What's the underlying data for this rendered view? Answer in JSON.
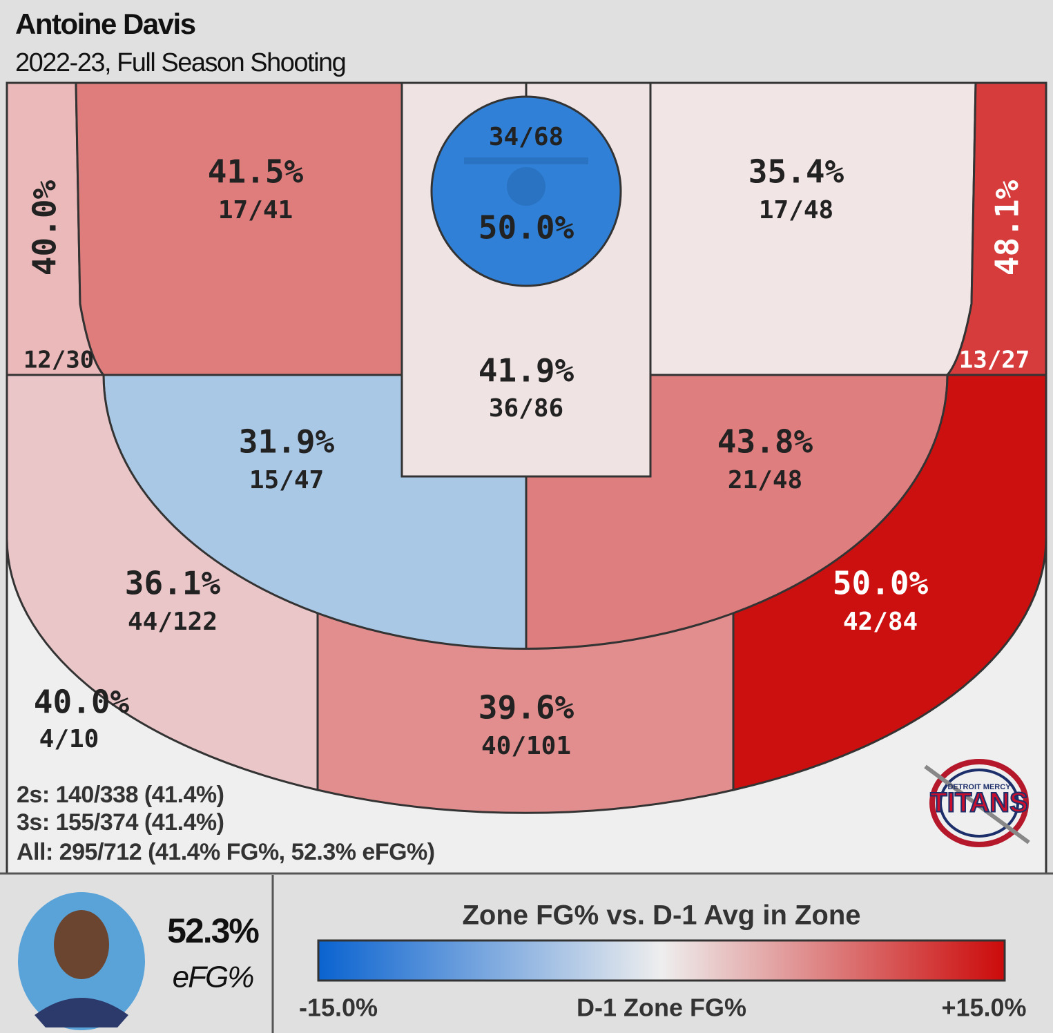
{
  "header": {
    "title": "Antoine Davis",
    "subtitle": "2022-23, Full Season Shooting"
  },
  "zones": [
    {
      "pct": "40.0%",
      "shots": "12/30",
      "color": "#ebb9b9",
      "label_color": "#222222"
    },
    {
      "pct": "41.5%",
      "shots": "17/41",
      "color": "#df7c7c",
      "label_color": "#222222"
    },
    {
      "pct": "50.0%",
      "shots": "34/68",
      "color": "#2f80d6",
      "label_color": "#222222"
    },
    {
      "pct": "41.9%",
      "shots": "36/86",
      "color": "#f0e3e3",
      "label_color": "#222222"
    },
    {
      "pct": "35.4%",
      "shots": "17/48",
      "color": "#f2e5e5",
      "label_color": "#222222"
    },
    {
      "pct": "48.1%",
      "shots": "13/27",
      "color": "#d63c3c",
      "label_color": "#ffffff"
    },
    {
      "pct": "31.9%",
      "shots": "15/47",
      "color": "#a9c8e6",
      "label_color": "#222222"
    },
    {
      "pct": "43.8%",
      "shots": "21/48",
      "color": "#df7e7e",
      "label_color": "#222222"
    },
    {
      "pct": "36.1%",
      "shots": "44/122",
      "color": "#ebc6c8",
      "label_color": "#222222"
    },
    {
      "pct": "39.6%",
      "shots": "40/101",
      "color": "#e38e8e",
      "label_color": "#222222"
    },
    {
      "pct": "50.0%",
      "shots": "42/84",
      "color": "#cc1010",
      "label_color": "#ffffff"
    },
    {
      "pct": "40.0%",
      "shots": "4/10",
      "color": "#efefef",
      "label_color": "#222222"
    }
  ],
  "summary": [
    "2s: 140/338 (41.4%)",
    "3s: 155/374 (41.4%)",
    "All: 295/712 (41.4% FG%, 52.3% eFG%)"
  ],
  "logo": {
    "top": "DETROIT MERCY",
    "name": "TITANS"
  },
  "player": {
    "efg": "52.3%",
    "label": "eFG%"
  },
  "legend": {
    "title": "Zone FG% vs. D-1 Avg in Zone",
    "low": "-15.0%",
    "mid": "D-1 Zone FG%",
    "high": "+15.0%",
    "colors": [
      "#0a63d0",
      "#eeeeee",
      "#cc0a0a"
    ]
  }
}
